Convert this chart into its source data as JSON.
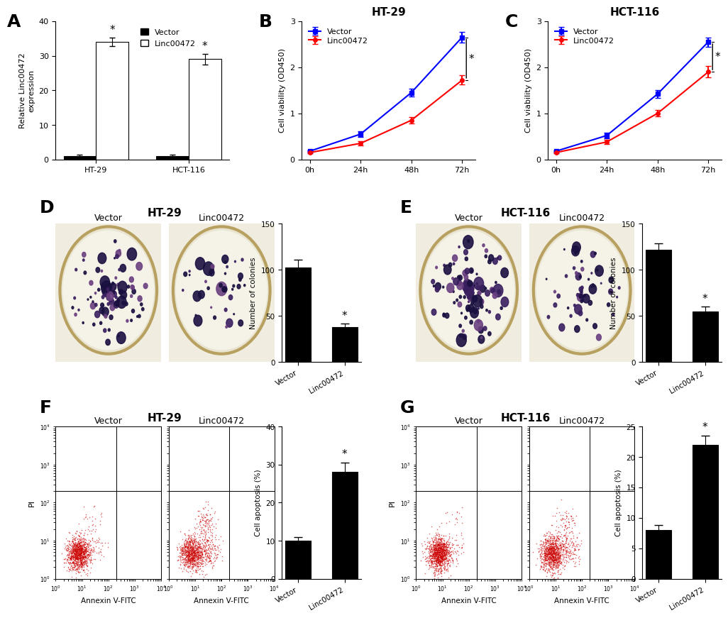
{
  "panel_A": {
    "ylabel": "Relative Linc00472\nexpression",
    "groups": [
      "HT-29",
      "HCT-116"
    ],
    "vector_vals": [
      1.0,
      1.0
    ],
    "linc_vals": [
      34.0,
      29.0
    ],
    "vector_err": [
      0.3,
      0.3
    ],
    "linc_err": [
      1.2,
      1.5
    ],
    "ylim": [
      0,
      40
    ],
    "yticks": [
      0,
      10,
      20,
      30,
      40
    ],
    "bar_width": 0.35,
    "vector_color": "#000000",
    "linc_color": "#ffffff",
    "legend_labels": [
      "Vector",
      "Linc00472"
    ]
  },
  "panel_B": {
    "title": "HT-29",
    "ylabel": "Cell viability (OD450)",
    "xvals": [
      0,
      24,
      48,
      72
    ],
    "vector_vals": [
      0.18,
      0.55,
      1.45,
      2.65
    ],
    "linc_vals": [
      0.15,
      0.35,
      0.85,
      1.72
    ],
    "vector_err": [
      0.02,
      0.06,
      0.08,
      0.12
    ],
    "linc_err": [
      0.02,
      0.05,
      0.07,
      0.1
    ],
    "ylim": [
      0,
      3
    ],
    "yticks": [
      0,
      1,
      2,
      3
    ],
    "vector_color": "#0000ff",
    "linc_color": "#ff0000",
    "xtick_labels": [
      "0h",
      "24h",
      "48h",
      "72h"
    ],
    "legend_labels": [
      "Vector",
      "Linc00472"
    ]
  },
  "panel_C": {
    "title": "HCT-116",
    "ylabel": "Cell viability (OD450)",
    "xvals": [
      0,
      24,
      48,
      72
    ],
    "vector_vals": [
      0.18,
      0.52,
      1.42,
      2.55
    ],
    "linc_vals": [
      0.15,
      0.38,
      1.0,
      1.9
    ],
    "vector_err": [
      0.02,
      0.06,
      0.08,
      0.1
    ],
    "linc_err": [
      0.02,
      0.05,
      0.07,
      0.12
    ],
    "ylim": [
      0,
      3
    ],
    "yticks": [
      0,
      1,
      2,
      3
    ],
    "vector_color": "#0000ff",
    "linc_color": "#ff0000",
    "xtick_labels": [
      "0h",
      "24h",
      "48h",
      "72h"
    ],
    "legend_labels": [
      "Vector",
      "Linc00472"
    ]
  },
  "panel_D_bar": {
    "title_D": "HT-29",
    "ylabel": "Number of colonies",
    "categories": [
      "Vector",
      "Linc00472"
    ],
    "values": [
      103,
      38
    ],
    "errors": [
      8,
      4
    ],
    "ylim": [
      0,
      150
    ],
    "yticks": [
      0,
      50,
      100,
      150
    ],
    "bar_color": "#000000"
  },
  "panel_E_bar": {
    "title_E": "HCT-116",
    "ylabel": "Number of colonies",
    "categories": [
      "Vector",
      "Linc00472"
    ],
    "values": [
      122,
      55
    ],
    "errors": [
      7,
      5
    ],
    "ylim": [
      0,
      150
    ],
    "yticks": [
      0,
      50,
      100,
      150
    ],
    "bar_color": "#000000"
  },
  "panel_F_bar": {
    "title_F": "HT-29",
    "ylabel": "Cell apoptosis (%)",
    "categories": [
      "Vector",
      "Linc00472"
    ],
    "values": [
      10,
      28
    ],
    "errors": [
      1.0,
      2.5
    ],
    "ylim": [
      0,
      40
    ],
    "yticks": [
      0,
      10,
      20,
      30,
      40
    ],
    "bar_color": "#000000"
  },
  "panel_G_bar": {
    "title_G": "HCT-116",
    "ylabel": "Cell apoptosis (%)",
    "categories": [
      "Vector",
      "Linc00472"
    ],
    "values": [
      8,
      22
    ],
    "errors": [
      0.8,
      1.5
    ],
    "ylim": [
      0,
      25
    ],
    "yticks": [
      0,
      5,
      10,
      15,
      20,
      25
    ],
    "bar_color": "#000000"
  },
  "bg_color": "#ffffff",
  "panel_labels": [
    "A",
    "B",
    "C",
    "D",
    "E",
    "F",
    "G"
  ],
  "panel_label_fontsize": 18,
  "dish_bg": "#e8e8d8",
  "dish_rim": "#c8b870",
  "colony_color_dark": "#2a1a50",
  "colony_color_med": "#5a3a80",
  "flow_dot_color": "#cc0000"
}
